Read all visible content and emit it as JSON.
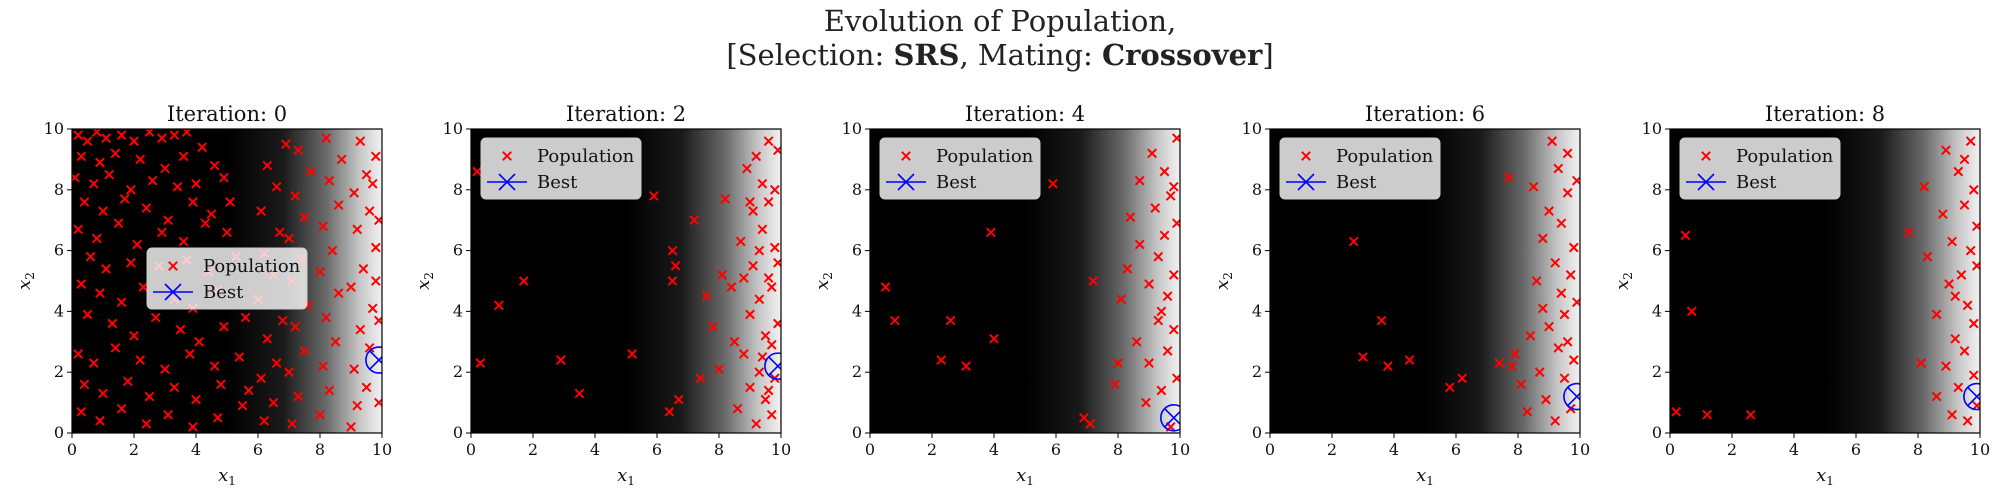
{
  "figure": {
    "title_line1": "Evolution of Population,",
    "title_prefix": "[Selection: ",
    "title_selection": "SRS",
    "title_mid": ", Mating: ",
    "title_mating": "Crossover",
    "title_suffix": "]"
  },
  "colors": {
    "population": "#ff0000",
    "best": "#0000ff",
    "background_dark": "#000000",
    "background_light": "#f2f2f2"
  },
  "chart_data": [
    {
      "type": "scatter",
      "title": "Iteration: 0",
      "xlabel": "x1",
      "ylabel": "x2",
      "xlim": [
        0,
        10
      ],
      "ylim": [
        0,
        10
      ],
      "xticks": [
        0,
        2,
        4,
        6,
        8,
        10
      ],
      "yticks": [
        0,
        2,
        4,
        6,
        8,
        10
      ],
      "legend_position": "center-left",
      "legend": [
        "Population",
        "Best"
      ],
      "best": [
        9.9,
        2.4
      ],
      "population": [
        [
          0.2,
          9.8
        ],
        [
          0.5,
          9.6
        ],
        [
          0.8,
          9.9
        ],
        [
          1.1,
          9.7
        ],
        [
          1.6,
          9.8
        ],
        [
          2.0,
          9.6
        ],
        [
          2.5,
          9.9
        ],
        [
          2.9,
          9.7
        ],
        [
          3.3,
          9.8
        ],
        [
          3.7,
          9.9
        ],
        [
          0.3,
          9.1
        ],
        [
          0.9,
          8.9
        ],
        [
          1.4,
          9.2
        ],
        [
          2.2,
          9.0
        ],
        [
          3.0,
          8.7
        ],
        [
          3.6,
          9.1
        ],
        [
          4.2,
          9.4
        ],
        [
          4.6,
          8.8
        ],
        [
          0.1,
          8.4
        ],
        [
          0.7,
          8.2
        ],
        [
          1.2,
          8.5
        ],
        [
          1.9,
          8.0
        ],
        [
          2.6,
          8.3
        ],
        [
          3.4,
          8.1
        ],
        [
          4.0,
          8.2
        ],
        [
          4.9,
          8.4
        ],
        [
          0.4,
          7.6
        ],
        [
          1.0,
          7.3
        ],
        [
          1.7,
          7.7
        ],
        [
          2.4,
          7.4
        ],
        [
          3.1,
          7.0
        ],
        [
          3.9,
          7.6
        ],
        [
          4.5,
          7.2
        ],
        [
          5.1,
          7.6
        ],
        [
          0.2,
          6.7
        ],
        [
          0.8,
          6.4
        ],
        [
          1.5,
          6.9
        ],
        [
          2.1,
          6.2
        ],
        [
          2.9,
          6.6
        ],
        [
          3.6,
          6.3
        ],
        [
          4.3,
          6.9
        ],
        [
          5.0,
          6.6
        ],
        [
          0.6,
          5.8
        ],
        [
          1.1,
          5.4
        ],
        [
          1.9,
          5.6
        ],
        [
          2.8,
          5.5
        ],
        [
          3.7,
          5.7
        ],
        [
          4.4,
          5.3
        ],
        [
          5.3,
          5.8
        ],
        [
          0.3,
          4.9
        ],
        [
          0.9,
          4.6
        ],
        [
          1.6,
          4.3
        ],
        [
          2.3,
          4.8
        ],
        [
          3.3,
          4.4
        ],
        [
          3.9,
          4.1
        ],
        [
          4.7,
          4.7
        ],
        [
          0.5,
          3.9
        ],
        [
          1.3,
          3.6
        ],
        [
          2.0,
          3.2
        ],
        [
          2.7,
          3.8
        ],
        [
          3.5,
          3.4
        ],
        [
          4.1,
          3.0
        ],
        [
          4.9,
          3.5
        ],
        [
          5.6,
          3.8
        ],
        [
          0.2,
          2.6
        ],
        [
          0.7,
          2.3
        ],
        [
          1.4,
          2.8
        ],
        [
          2.2,
          2.4
        ],
        [
          3.0,
          2.1
        ],
        [
          3.8,
          2.6
        ],
        [
          4.6,
          2.2
        ],
        [
          5.4,
          2.5
        ],
        [
          0.4,
          1.6
        ],
        [
          1.0,
          1.3
        ],
        [
          1.8,
          1.7
        ],
        [
          2.5,
          1.2
        ],
        [
          3.3,
          1.5
        ],
        [
          4.0,
          1.1
        ],
        [
          4.8,
          1.6
        ],
        [
          5.7,
          1.4
        ],
        [
          0.3,
          0.7
        ],
        [
          0.9,
          0.4
        ],
        [
          1.6,
          0.8
        ],
        [
          2.4,
          0.3
        ],
        [
          3.1,
          0.6
        ],
        [
          3.9,
          0.2
        ],
        [
          4.7,
          0.5
        ],
        [
          5.5,
          0.9
        ],
        [
          6.2,
          0.4
        ],
        [
          6.5,
          1.0
        ],
        [
          6.1,
          1.8
        ],
        [
          6.6,
          2.3
        ],
        [
          6.3,
          3.1
        ],
        [
          6.8,
          3.7
        ],
        [
          6.0,
          4.4
        ],
        [
          6.5,
          5.2
        ],
        [
          6.2,
          5.9
        ],
        [
          6.7,
          6.6
        ],
        [
          6.1,
          7.3
        ],
        [
          6.6,
          8.1
        ],
        [
          6.3,
          8.8
        ],
        [
          6.9,
          9.5
        ],
        [
          7.1,
          0.3
        ],
        [
          7.3,
          1.2
        ],
        [
          7.0,
          2.0
        ],
        [
          7.5,
          2.7
        ],
        [
          7.2,
          3.5
        ],
        [
          7.6,
          4.2
        ],
        [
          7.1,
          5.0
        ],
        [
          7.4,
          5.7
        ],
        [
          7.0,
          6.4
        ],
        [
          7.5,
          7.1
        ],
        [
          7.2,
          7.8
        ],
        [
          7.7,
          8.6
        ],
        [
          7.3,
          9.3
        ],
        [
          8.0,
          0.6
        ],
        [
          8.3,
          1.4
        ],
        [
          8.1,
          2.2
        ],
        [
          8.5,
          3.0
        ],
        [
          8.2,
          3.8
        ],
        [
          8.6,
          4.6
        ],
        [
          8.0,
          5.3
        ],
        [
          8.4,
          6.0
        ],
        [
          8.1,
          6.8
        ],
        [
          8.6,
          7.5
        ],
        [
          8.3,
          8.3
        ],
        [
          8.7,
          9.0
        ],
        [
          8.2,
          9.7
        ],
        [
          9.0,
          0.2
        ],
        [
          9.2,
          0.9
        ],
        [
          9.5,
          1.5
        ],
        [
          9.1,
          2.1
        ],
        [
          9.6,
          2.8
        ],
        [
          9.3,
          3.4
        ],
        [
          9.7,
          4.1
        ],
        [
          9.0,
          4.8
        ],
        [
          9.4,
          5.4
        ],
        [
          9.8,
          6.1
        ],
        [
          9.2,
          6.7
        ],
        [
          9.6,
          7.3
        ],
        [
          9.1,
          7.9
        ],
        [
          9.5,
          8.5
        ],
        [
          9.8,
          9.1
        ],
        [
          9.3,
          9.6
        ],
        [
          9.9,
          3.7
        ],
        [
          9.8,
          5.0
        ],
        [
          9.9,
          7.0
        ],
        [
          9.7,
          8.2
        ],
        [
          9.9,
          1.0
        ]
      ]
    },
    {
      "type": "scatter",
      "title": "Iteration: 2",
      "xlabel": "x1",
      "ylabel": "x2",
      "xlim": [
        0,
        10
      ],
      "ylim": [
        0,
        10
      ],
      "xticks": [
        0,
        2,
        4,
        6,
        8,
        10
      ],
      "yticks": [
        0,
        2,
        4,
        6,
        8,
        10
      ],
      "legend_position": "top-left",
      "legend": [
        "Population",
        "Best"
      ],
      "best": [
        9.9,
        2.2
      ],
      "population": [
        [
          0.2,
          8.6
        ],
        [
          0.3,
          2.3
        ],
        [
          0.9,
          4.2
        ],
        [
          1.7,
          5.0
        ],
        [
          2.9,
          2.4
        ],
        [
          3.5,
          1.3
        ],
        [
          5.2,
          2.6
        ],
        [
          5.9,
          7.8
        ],
        [
          6.4,
          0.7
        ],
        [
          6.5,
          6.0
        ],
        [
          6.6,
          5.5
        ],
        [
          6.5,
          5.0
        ],
        [
          6.7,
          1.1
        ],
        [
          7.2,
          7.0
        ],
        [
          7.4,
          1.8
        ],
        [
          7.6,
          4.5
        ],
        [
          7.8,
          3.5
        ],
        [
          8.0,
          2.1
        ],
        [
          8.1,
          5.2
        ],
        [
          8.2,
          7.7
        ],
        [
          8.4,
          4.8
        ],
        [
          8.5,
          3.0
        ],
        [
          8.6,
          0.8
        ],
        [
          8.7,
          6.3
        ],
        [
          8.8,
          2.6
        ],
        [
          8.9,
          8.7
        ],
        [
          9.0,
          1.5
        ],
        [
          9.0,
          3.9
        ],
        [
          9.1,
          5.5
        ],
        [
          9.1,
          7.3
        ],
        [
          9.2,
          9.1
        ],
        [
          9.2,
          0.3
        ],
        [
          9.3,
          2.0
        ],
        [
          9.3,
          4.4
        ],
        [
          9.4,
          6.7
        ],
        [
          9.4,
          8.2
        ],
        [
          9.5,
          1.1
        ],
        [
          9.5,
          3.2
        ],
        [
          9.6,
          5.1
        ],
        [
          9.6,
          7.6
        ],
        [
          9.6,
          9.6
        ],
        [
          9.7,
          0.6
        ],
        [
          9.7,
          2.9
        ],
        [
          9.7,
          4.8
        ],
        [
          9.8,
          6.1
        ],
        [
          9.8,
          8.0
        ],
        [
          9.8,
          1.8
        ],
        [
          9.9,
          3.6
        ],
        [
          9.9,
          5.6
        ],
        [
          9.9,
          9.3
        ],
        [
          9.0,
          7.6
        ],
        [
          8.8,
          5.1
        ],
        [
          9.4,
          2.5
        ],
        [
          9.6,
          1.4
        ],
        [
          9.3,
          6.0
        ]
      ]
    },
    {
      "type": "scatter",
      "title": "Iteration: 4",
      "xlabel": "x1",
      "ylabel": "x2",
      "xlim": [
        0,
        10
      ],
      "ylim": [
        0,
        10
      ],
      "xticks": [
        0,
        2,
        4,
        6,
        8,
        10
      ],
      "yticks": [
        0,
        2,
        4,
        6,
        8,
        10
      ],
      "legend_position": "top-left",
      "legend": [
        "Population",
        "Best"
      ],
      "best": [
        9.8,
        0.5
      ],
      "population": [
        [
          0.5,
          4.8
        ],
        [
          0.8,
          3.7
        ],
        [
          2.3,
          2.4
        ],
        [
          2.6,
          3.7
        ],
        [
          3.1,
          2.2
        ],
        [
          3.9,
          6.6
        ],
        [
          4.0,
          3.1
        ],
        [
          5.9,
          8.2
        ],
        [
          6.9,
          0.5
        ],
        [
          7.1,
          0.3
        ],
        [
          7.2,
          5.0
        ],
        [
          7.9,
          1.6
        ],
        [
          8.0,
          2.3
        ],
        [
          8.1,
          4.4
        ],
        [
          8.3,
          5.4
        ],
        [
          8.4,
          7.1
        ],
        [
          8.6,
          3.0
        ],
        [
          8.7,
          8.3
        ],
        [
          8.7,
          6.2
        ],
        [
          8.9,
          1.0
        ],
        [
          9.0,
          4.9
        ],
        [
          9.0,
          2.3
        ],
        [
          9.1,
          9.2
        ],
        [
          9.2,
          7.4
        ],
        [
          9.3,
          3.7
        ],
        [
          9.3,
          5.8
        ],
        [
          9.4,
          1.4
        ],
        [
          9.5,
          8.6
        ],
        [
          9.5,
          6.5
        ],
        [
          9.6,
          2.7
        ],
        [
          9.6,
          4.5
        ],
        [
          9.7,
          0.2
        ],
        [
          9.7,
          7.8
        ],
        [
          9.8,
          3.4
        ],
        [
          9.8,
          5.2
        ],
        [
          9.9,
          9.7
        ],
        [
          9.9,
          6.9
        ],
        [
          9.9,
          1.8
        ],
        [
          9.8,
          8.1
        ],
        [
          9.4,
          4.0
        ]
      ]
    },
    {
      "type": "scatter",
      "title": "Iteration: 6",
      "xlabel": "x1",
      "ylabel": "x2",
      "xlim": [
        0,
        10
      ],
      "ylim": [
        0,
        10
      ],
      "xticks": [
        0,
        2,
        4,
        6,
        8,
        10
      ],
      "yticks": [
        0,
        2,
        4,
        6,
        8,
        10
      ],
      "legend_position": "top-left",
      "legend": [
        "Population",
        "Best"
      ],
      "best": [
        9.9,
        1.2
      ],
      "population": [
        [
          2.7,
          6.3
        ],
        [
          3.0,
          2.5
        ],
        [
          3.6,
          3.7
        ],
        [
          3.8,
          2.2
        ],
        [
          4.5,
          2.4
        ],
        [
          5.8,
          1.5
        ],
        [
          6.2,
          1.8
        ],
        [
          7.4,
          2.3
        ],
        [
          7.8,
          2.2
        ],
        [
          7.7,
          8.4
        ],
        [
          7.9,
          2.6
        ],
        [
          8.1,
          1.6
        ],
        [
          8.3,
          0.7
        ],
        [
          8.4,
          3.2
        ],
        [
          8.5,
          8.1
        ],
        [
          8.6,
          5.0
        ],
        [
          8.7,
          2.0
        ],
        [
          8.8,
          4.1
        ],
        [
          8.8,
          6.4
        ],
        [
          8.9,
          1.1
        ],
        [
          9.0,
          3.5
        ],
        [
          9.0,
          7.3
        ],
        [
          9.1,
          9.6
        ],
        [
          9.2,
          0.4
        ],
        [
          9.2,
          5.6
        ],
        [
          9.3,
          2.8
        ],
        [
          9.3,
          8.7
        ],
        [
          9.4,
          4.6
        ],
        [
          9.4,
          6.9
        ],
        [
          9.5,
          1.8
        ],
        [
          9.5,
          3.9
        ],
        [
          9.6,
          7.9
        ],
        [
          9.6,
          9.2
        ],
        [
          9.7,
          0.8
        ],
        [
          9.7,
          5.2
        ],
        [
          9.8,
          2.4
        ],
        [
          9.8,
          6.1
        ],
        [
          9.9,
          4.3
        ],
        [
          9.9,
          8.3
        ],
        [
          9.6,
          3.0
        ]
      ]
    },
    {
      "type": "scatter",
      "title": "Iteration: 8",
      "xlabel": "x1",
      "ylabel": "x2",
      "xlim": [
        0,
        10
      ],
      "ylim": [
        0,
        10
      ],
      "xticks": [
        0,
        2,
        4,
        6,
        8,
        10
      ],
      "yticks": [
        0,
        2,
        4,
        6,
        8,
        10
      ],
      "legend_position": "top-left",
      "legend": [
        "Population",
        "Best"
      ],
      "best": [
        9.9,
        1.2
      ],
      "population": [
        [
          0.2,
          0.7
        ],
        [
          0.5,
          6.5
        ],
        [
          0.7,
          4.0
        ],
        [
          1.2,
          0.6
        ],
        [
          2.6,
          0.6
        ],
        [
          7.7,
          6.6
        ],
        [
          8.1,
          2.3
        ],
        [
          8.2,
          8.1
        ],
        [
          8.3,
          5.8
        ],
        [
          8.6,
          1.2
        ],
        [
          8.6,
          3.9
        ],
        [
          8.8,
          7.2
        ],
        [
          8.9,
          2.2
        ],
        [
          8.9,
          9.3
        ],
        [
          9.0,
          4.9
        ],
        [
          9.1,
          0.6
        ],
        [
          9.1,
          6.3
        ],
        [
          9.2,
          3.1
        ],
        [
          9.3,
          8.6
        ],
        [
          9.3,
          1.5
        ],
        [
          9.4,
          5.2
        ],
        [
          9.5,
          7.5
        ],
        [
          9.5,
          2.7
        ],
        [
          9.6,
          0.4
        ],
        [
          9.6,
          4.2
        ],
        [
          9.7,
          6.0
        ],
        [
          9.7,
          9.6
        ],
        [
          9.8,
          1.9
        ],
        [
          9.8,
          3.6
        ],
        [
          9.8,
          8.0
        ],
        [
          9.9,
          5.5
        ],
        [
          9.9,
          0.9
        ],
        [
          9.9,
          6.8
        ],
        [
          9.5,
          9.0
        ],
        [
          9.2,
          4.5
        ]
      ]
    }
  ]
}
